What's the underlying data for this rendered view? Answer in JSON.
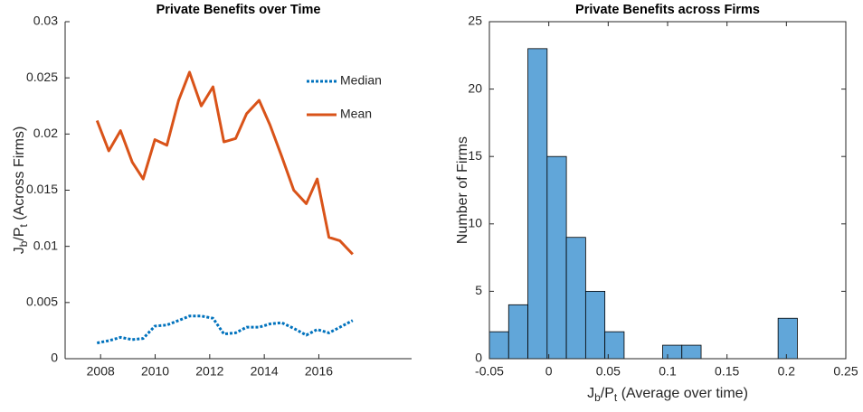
{
  "chart_data": [
    {
      "type": "line",
      "title": "Private Benefits over Time",
      "ylabel": [
        "J",
        "b",
        "/P",
        "t",
        " (Across Firms)"
      ],
      "x": [
        2007.87,
        2008.3,
        2008.73,
        2009.16,
        2009.56,
        2009.99,
        2010.43,
        2010.86,
        2011.26,
        2011.69,
        2012.12,
        2012.52,
        2012.95,
        2013.35,
        2013.81,
        2014.21,
        2014.64,
        2015.08,
        2015.54,
        2015.94,
        2016.37,
        2016.77,
        2017.24
      ],
      "series": [
        {
          "name": "Median",
          "color": "#0072bd",
          "style": "dotted",
          "values": [
            0.0014,
            0.0016,
            0.0019,
            0.0017,
            0.0018,
            0.0029,
            0.003,
            0.0034,
            0.0038,
            0.0038,
            0.0036,
            0.0022,
            0.0023,
            0.0028,
            0.0028,
            0.0031,
            0.0032,
            0.0027,
            0.0021,
            0.0026,
            0.0023,
            0.0028,
            0.0034
          ]
        },
        {
          "name": "Mean",
          "color": "#d95319",
          "style": "solid",
          "values": [
            0.0212,
            0.0185,
            0.0203,
            0.0175,
            0.016,
            0.0195,
            0.019,
            0.023,
            0.0255,
            0.0225,
            0.0242,
            0.0193,
            0.0196,
            0.0218,
            0.023,
            0.0208,
            0.018,
            0.015,
            0.0138,
            0.016,
            0.0108,
            0.0105,
            0.0093
          ]
        }
      ],
      "xlim": [
        2006.7,
        2019.4
      ],
      "xticks": [
        2008,
        2010,
        2012,
        2014,
        2016
      ],
      "ylim": [
        0,
        0.03
      ],
      "yticks": [
        0,
        0.005,
        0.01,
        0.015,
        0.02,
        0.025,
        0.03
      ],
      "legend": "upper right",
      "box": false
    },
    {
      "type": "histogram",
      "title": "Private Benefits across Firms",
      "xlabel": [
        "J",
        "b",
        "/P",
        "t",
        " (Average over time)"
      ],
      "ylabel": "Number of Firms",
      "bins": [
        -0.05,
        -0.0338,
        -0.0176,
        -0.0014,
        0.0148,
        0.031,
        0.0472,
        0.0634,
        0.0796,
        0.0958,
        0.112,
        0.1282,
        0.1444,
        0.1606,
        0.1768,
        0.193,
        0.2092
      ],
      "values": [
        2,
        4,
        23,
        15,
        9,
        5,
        2,
        0,
        0,
        1,
        1,
        0,
        0,
        0,
        0,
        3
      ],
      "color": "#61a6d9",
      "edge_color": "#000000",
      "xlim": [
        -0.05,
        0.25
      ],
      "xticks": [
        -0.05,
        0,
        0.05,
        0.1,
        0.15,
        0.2,
        0.25
      ],
      "ylim": [
        0,
        25
      ],
      "yticks": [
        0,
        5,
        10,
        15,
        20,
        25
      ],
      "box": true
    }
  ]
}
